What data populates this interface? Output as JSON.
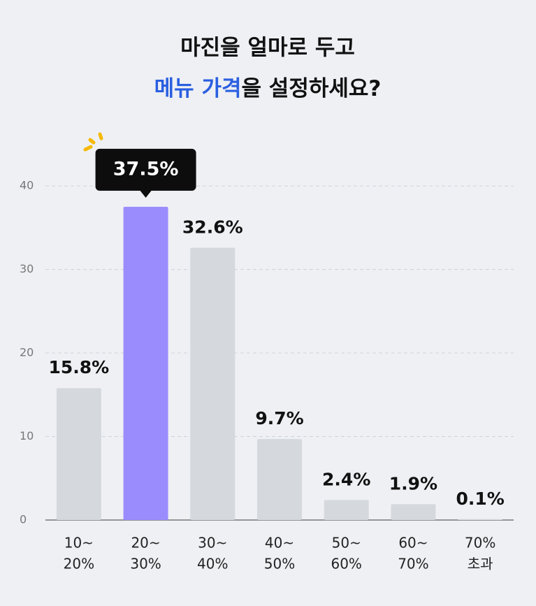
{
  "chart_data": {
    "type": "bar",
    "title": {
      "line1": "마진을 얼마로 두고",
      "line2_highlight": "메뉴 가격",
      "line2_rest": "을 설정하세요?"
    },
    "categories": [
      [
        "10~",
        "20%"
      ],
      [
        "20~",
        "30%"
      ],
      [
        "30~",
        "40%"
      ],
      [
        "40~",
        "50%"
      ],
      [
        "50~",
        "60%"
      ],
      [
        "60~",
        "70%"
      ],
      [
        "70%",
        "초과"
      ]
    ],
    "values": [
      15.8,
      37.5,
      32.6,
      9.7,
      2.4,
      1.9,
      0.1
    ],
    "value_labels": [
      "15.8%",
      "37.5%",
      "32.6%",
      "9.7%",
      "2.4%",
      "1.9%",
      "0.1%"
    ],
    "colors": [
      "#d5d9de",
      "#9b8cfd",
      "#d5d9de",
      "#d5d9de",
      "#d5d9de",
      "#d5d9de",
      "#d5d9de"
    ],
    "highlight": 1,
    "ylim": [
      0,
      40
    ],
    "yticks": [
      0,
      10,
      20,
      30,
      40
    ],
    "grid": true
  }
}
